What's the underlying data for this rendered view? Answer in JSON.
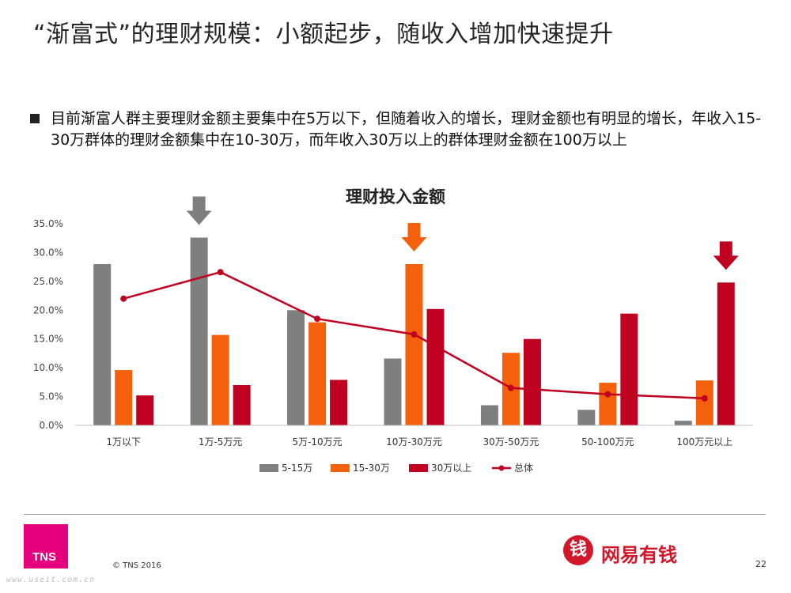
{
  "slide": {
    "title": "“渐富式”的理财规模：小额起步，随收入增加快速提升",
    "bullet": "目前渐富人群主要理财金额主要集中在5万以下，但随着收入的增长，理财金额也有明显的增长，年收入15-30万群体的理财金额集中在10-30万，而年收入30万以上的群体理财金额在100万以上"
  },
  "footer": {
    "logo_text": "TNS",
    "copyright": "© TNS 2016",
    "brand_icon_char": "钱",
    "brand_name": "网易有钱",
    "page_number": "22",
    "watermark": "www.useit.com.cn"
  },
  "colors": {
    "series_5_15": "#7f7f7f",
    "series_15_30": "#f4600c",
    "series_30plus": "#c00020",
    "total_line": "#c00020",
    "highlight_arrow_grey": "#7f7f7f",
    "highlight_arrow_orange": "#f4600c",
    "highlight_arrow_red": "#c00020"
  },
  "chart_data": {
    "type": "bar",
    "title": "理财投入金额",
    "categories": [
      "1万以下",
      "1万-5万元",
      "5万-10万元",
      "10万-30万元",
      "30万-50万元",
      "50-100万元",
      "100万元以上"
    ],
    "series": [
      {
        "name": "5-15万",
        "type": "bar",
        "values": [
          28.0,
          32.6,
          20.0,
          11.6,
          3.5,
          2.7,
          0.8
        ]
      },
      {
        "name": "15-30万",
        "type": "bar",
        "values": [
          9.6,
          15.7,
          17.9,
          28.0,
          12.6,
          7.4,
          7.8
        ]
      },
      {
        "name": "30万以上",
        "type": "bar",
        "values": [
          5.2,
          7.0,
          7.9,
          20.2,
          15.0,
          19.4,
          24.8
        ]
      },
      {
        "name": "总体",
        "type": "line",
        "values": [
          22.0,
          26.6,
          18.5,
          15.8,
          6.5,
          5.4,
          4.7
        ]
      }
    ],
    "y_ticks": [
      "0.0%",
      "5.0%",
      "10.0%",
      "15.0%",
      "20.0%",
      "25.0%",
      "30.0%",
      "35.0%"
    ],
    "ylim": [
      0,
      35
    ],
    "highlights": [
      {
        "category_index": 1,
        "series_index": 0
      },
      {
        "category_index": 3,
        "series_index": 1
      },
      {
        "category_index": 6,
        "series_index": 2
      }
    ],
    "legend_position": "bottom",
    "grid": false
  }
}
